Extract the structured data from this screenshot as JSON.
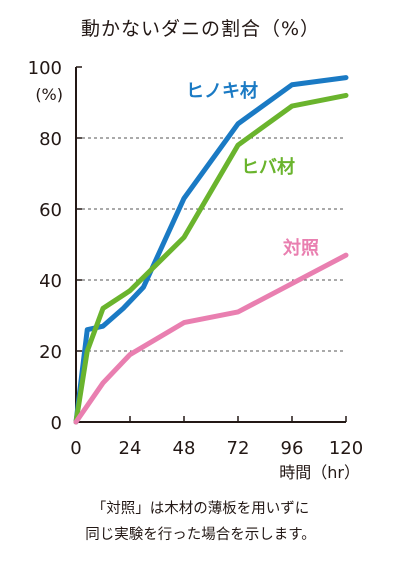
{
  "chart_data": {
    "type": "line",
    "title": "動かないダニの割合（%）",
    "y_unit_label": "(%)",
    "xlabel": "時間（hr）",
    "xlim": [
      0,
      120
    ],
    "ylim": [
      0,
      100
    ],
    "x_ticks": [
      0,
      24,
      48,
      72,
      96,
      120
    ],
    "y_ticks": [
      0,
      20,
      40,
      60,
      80,
      100
    ],
    "grid": "horizontal dashed at 20, 40, 60, 80",
    "series": [
      {
        "name": "ヒノキ材",
        "color": "#1a7ac4",
        "x": [
          0,
          5,
          12,
          21,
          30,
          48,
          72,
          96,
          120
        ],
        "y": [
          0,
          26,
          27,
          32,
          38,
          63,
          84,
          95,
          97
        ]
      },
      {
        "name": "ヒバ材",
        "color": "#6ab42d",
        "x": [
          0,
          5,
          12,
          24,
          48,
          72,
          96,
          120
        ],
        "y": [
          0,
          20,
          32,
          37,
          52,
          78,
          89,
          92
        ]
      },
      {
        "name": "対照",
        "color": "#e97fb0",
        "x": [
          0,
          12,
          24,
          48,
          72,
          96,
          120
        ],
        "y": [
          0,
          11,
          19,
          28,
          31,
          39,
          47
        ]
      }
    ]
  },
  "note": {
    "line1": "「対照」は木材の薄板を用いずに",
    "line2": "同じ実験を行った場合を示します。"
  }
}
